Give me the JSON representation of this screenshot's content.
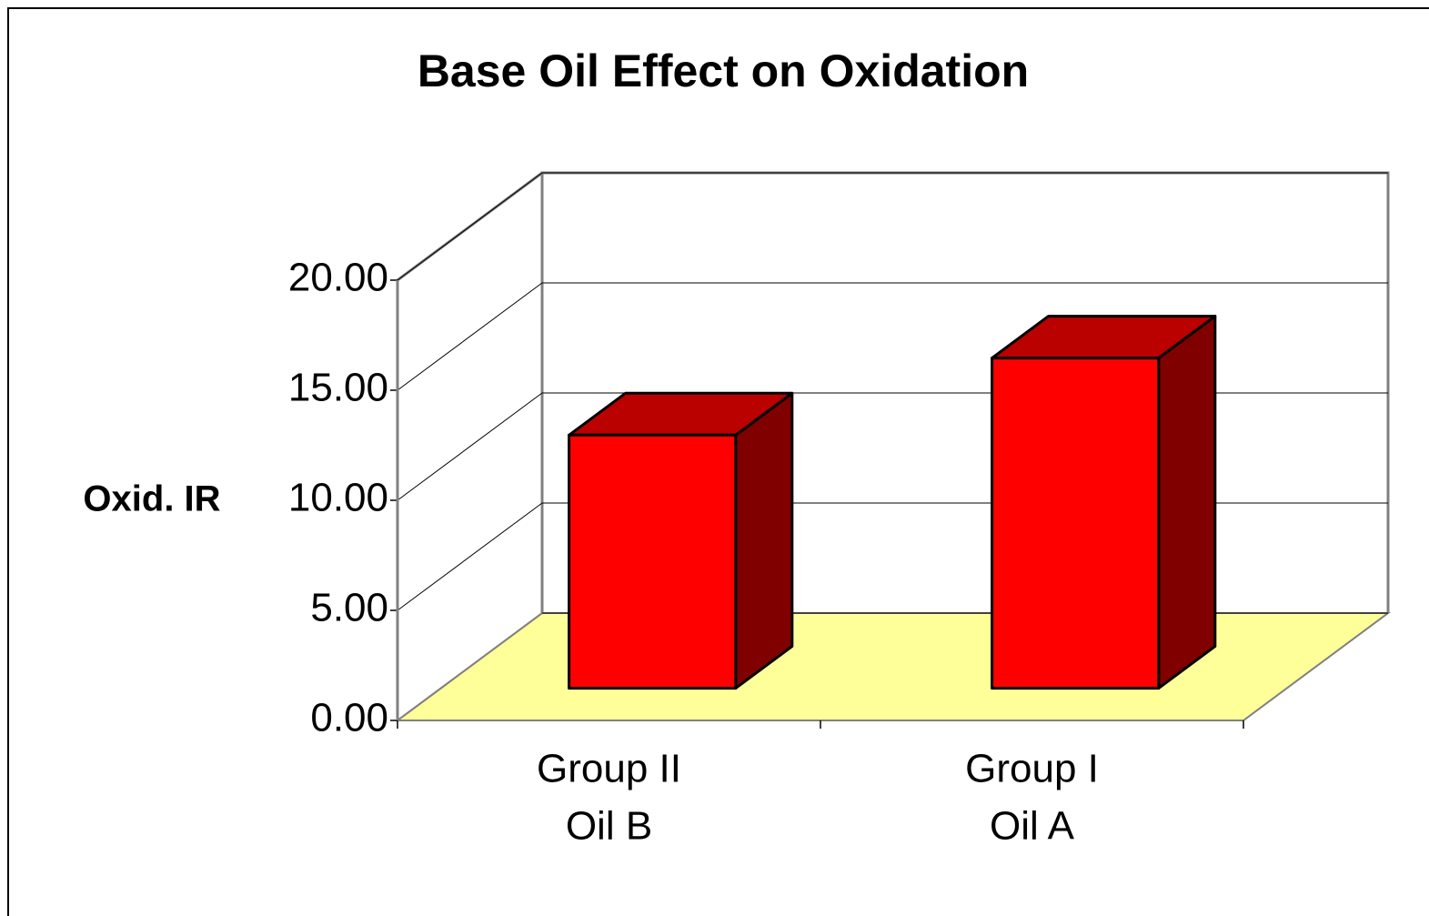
{
  "chart_data": {
    "type": "bar3d",
    "title": "Base Oil Effect on Oxidation",
    "y_label": "Oxid. IR",
    "categories": [
      [
        "Group II",
        "Oil B"
      ],
      [
        "Group I",
        "Oil A"
      ]
    ],
    "values": [
      11.5,
      15.0
    ],
    "color": "#ff0000",
    "top_color": "#bb0000",
    "side_color": "#800000",
    "floor_color": "#ffff99",
    "ylim": [
      0,
      20
    ],
    "yticks": [
      {
        "value": 0,
        "label": "0.00"
      },
      {
        "value": 5,
        "label": "5.00"
      },
      {
        "value": 10,
        "label": "10.00"
      },
      {
        "value": 15,
        "label": "15.00"
      },
      {
        "value": 20,
        "label": "20.00"
      }
    ],
    "grid": true
  }
}
